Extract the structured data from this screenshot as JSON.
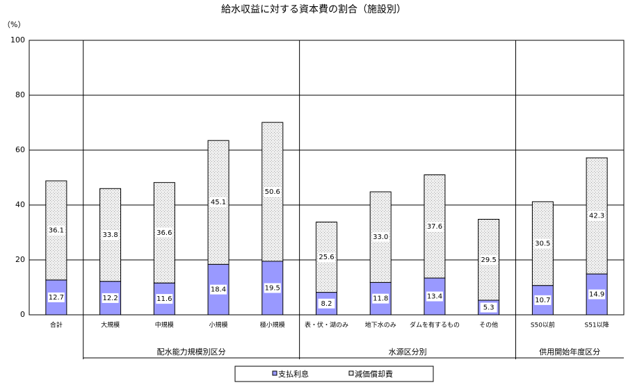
{
  "chart_data": {
    "type": "stacked-bar",
    "title": "給水収益に対する資本費の割合（施設別）",
    "y_label": "（%）",
    "categories": [
      "合計",
      "大規模",
      "中規模",
      "小規模",
      "極小規模",
      "表・伏・湖のみ",
      "地下水のみ",
      "ダムを有するもの",
      "その他",
      "S50以前",
      "S51以降"
    ],
    "groups": [
      {
        "name": "配水能力規模別区分",
        "span": [
          1,
          4
        ]
      },
      {
        "name": "水源区分別",
        "span": [
          5,
          8
        ]
      },
      {
        "name": "供用開始年度区分",
        "span": [
          9,
          10
        ]
      }
    ],
    "series": [
      {
        "name": "支払利息",
        "color": "#9999ff",
        "values": [
          12.7,
          12.2,
          11.6,
          18.4,
          19.5,
          8.2,
          11.8,
          13.4,
          5.3,
          10.7,
          14.9
        ],
        "value_labels": [
          "12.7",
          "12.2",
          "11.6",
          "18.4",
          "19.5",
          "8.2",
          "11.8",
          "13.4",
          "5.3",
          "10.7",
          "14.9"
        ]
      },
      {
        "name": "減価償却費",
        "color": "#a0a0a0",
        "values": [
          36.1,
          33.8,
          36.6,
          45.1,
          50.6,
          25.6,
          33.0,
          37.6,
          29.5,
          30.5,
          42.3
        ],
        "value_labels": [
          "36.1",
          "33.8",
          "36.6",
          "45.1",
          "50.6",
          "25.6",
          "33.0",
          "37.6",
          "29.5",
          "30.5",
          "42.3"
        ]
      }
    ],
    "ylim": [
      0,
      100
    ],
    "yticks": [
      0,
      20,
      40,
      60,
      80,
      100
    ],
    "grid": true
  }
}
